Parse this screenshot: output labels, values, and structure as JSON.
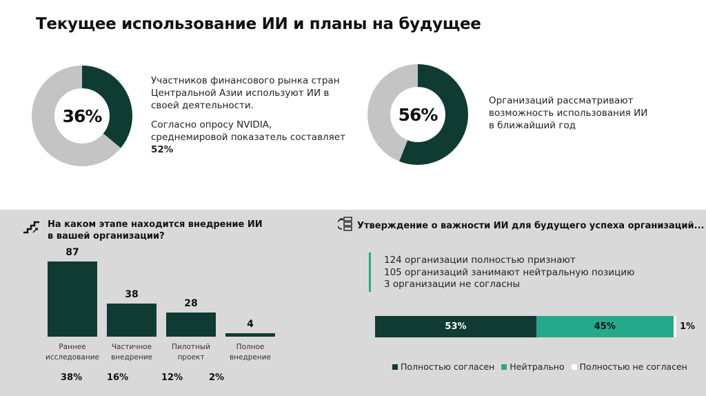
{
  "title": "Текущее использование ИИ и планы на будущее",
  "colors": {
    "dark": "#0f3b33",
    "teal": "#26a88a",
    "gray": "#c4c4c4",
    "white": "#ffffff"
  },
  "chart_data": [
    {
      "type": "pie",
      "subtype": "donut",
      "value_percent": 36,
      "label": "36%",
      "text": [
        "Участников финансового рынка стран",
        "Центральной Азии используют ИИ в",
        "своей деятельности."
      ],
      "note": [
        "Согласно опросу NVIDIA,",
        "среднемировой показатель составляет"
      ],
      "note_value": "52%"
    },
    {
      "type": "pie",
      "subtype": "donut",
      "value_percent": 56,
      "label": "56%",
      "text": [
        "Организаций рассматривают",
        "возможность использования ИИ",
        "в ближайший год"
      ]
    },
    {
      "type": "bar",
      "title": "На каком этапе находится внедрение ИИ в вашей организации?",
      "categories": [
        [
          "Раннее",
          "исследование"
        ],
        [
          "Частичное",
          "внедрение"
        ],
        [
          "Пилотный",
          "проект"
        ],
        [
          "Полное",
          "внедрение"
        ]
      ],
      "values": [
        87,
        38,
        28,
        4
      ],
      "value_labels": [
        "87",
        "38",
        "28",
        "4"
      ],
      "percent_labels": [
        "38%",
        "16%",
        "12%",
        "2%"
      ],
      "ylim": [
        0,
        87
      ]
    },
    {
      "type": "bar",
      "subtype": "stacked-horizontal",
      "title": "Утверждение о важности ИИ для будущего успеха организаций...",
      "notes": [
        "124 организации полностью признают",
        "105 организаций занимают нейтральную позицию",
        "3 организации не согласны"
      ],
      "series": [
        {
          "name": "Полностью согласен",
          "value": 53,
          "label": "53%"
        },
        {
          "name": "Нейтрально",
          "value": 45,
          "label": "45%"
        },
        {
          "name": "Полностью не согласен",
          "value": 1,
          "label": "1%"
        }
      ]
    }
  ]
}
